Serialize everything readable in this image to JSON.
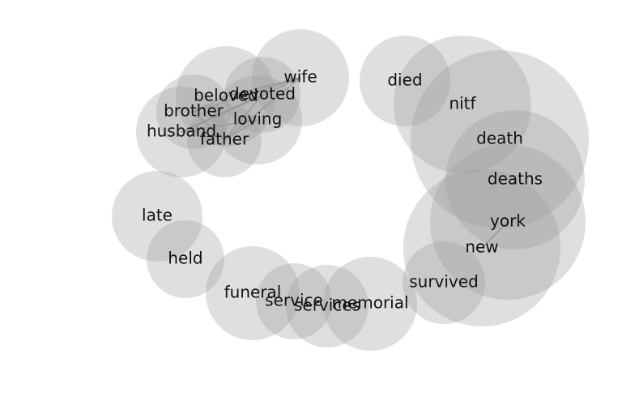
{
  "chart_data": {
    "type": "network",
    "nodes": [
      {
        "id": "wife",
        "label": "wife",
        "size": 60
      },
      {
        "id": "devoted",
        "label": "devoted",
        "size": 47
      },
      {
        "id": "beloved",
        "label": "beloved",
        "size": 62
      },
      {
        "id": "loving",
        "label": "loving",
        "size": 55
      },
      {
        "id": "brother",
        "label": "brother",
        "size": 46
      },
      {
        "id": "husband",
        "label": "husband",
        "size": 56
      },
      {
        "id": "father",
        "label": "father",
        "size": 46
      },
      {
        "id": "died",
        "label": "died",
        "size": 56
      },
      {
        "id": "nitf",
        "label": "nitf",
        "size": 85
      },
      {
        "id": "death",
        "label": "death",
        "size": 110
      },
      {
        "id": "deaths",
        "label": "deaths",
        "size": 86
      },
      {
        "id": "york",
        "label": "york",
        "size": 96
      },
      {
        "id": "new",
        "label": "new",
        "size": 97
      },
      {
        "id": "survived",
        "label": "survived",
        "size": 51
      },
      {
        "id": "late",
        "label": "late",
        "size": 56
      },
      {
        "id": "held",
        "label": "held",
        "size": 48
      },
      {
        "id": "funeral",
        "label": "funeral",
        "size": 58
      },
      {
        "id": "service",
        "label": "service",
        "size": 47
      },
      {
        "id": "services",
        "label": "services",
        "size": 51
      },
      {
        "id": "memorial",
        "label": "memorial",
        "size": 58
      }
    ],
    "edges": [
      [
        "wife",
        "beloved"
      ],
      [
        "wife",
        "brother"
      ],
      [
        "wife",
        "husband"
      ],
      [
        "wife",
        "father"
      ],
      [
        "devoted",
        "husband"
      ],
      [
        "devoted",
        "father"
      ],
      [
        "loving",
        "father"
      ],
      [
        "loving",
        "husband"
      ],
      [
        "beloved",
        "brother"
      ],
      [
        "brother",
        "father"
      ],
      [
        "new",
        "york"
      ]
    ]
  }
}
